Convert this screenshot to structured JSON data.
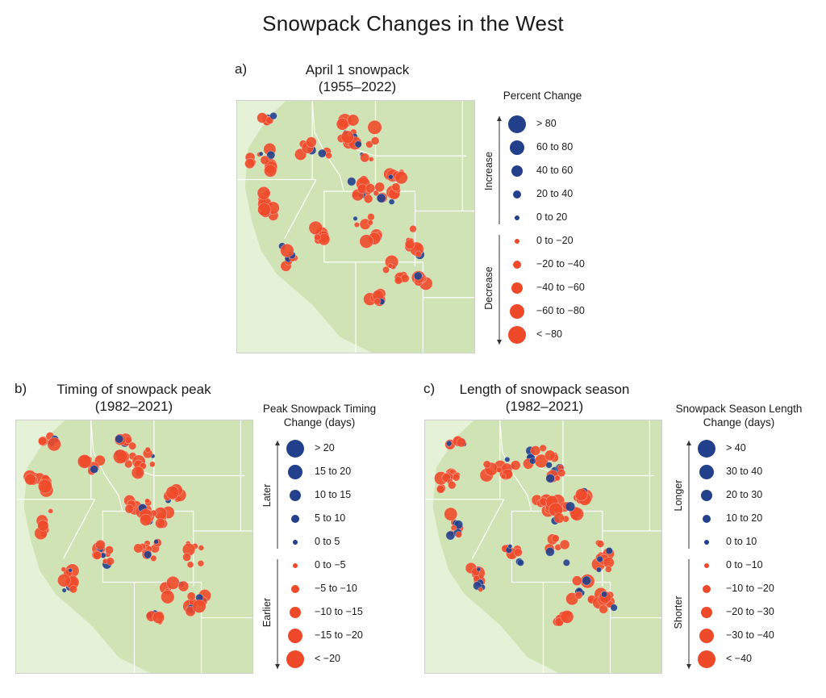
{
  "title": "Snowpack Changes in the West",
  "colors": {
    "increase": "#22408c",
    "decrease": "#ee4a2a",
    "land": "#cfe3b4",
    "outside": "#e6f2d8",
    "border": "#ffffff"
  },
  "panels": [
    {
      "letter": "a)",
      "title_line1": "April 1 snowpack",
      "title_line2": "(1955–2022)",
      "legend_title_line1": "Percent Change",
      "legend_title_line2": "",
      "upper_direction": "Increase",
      "lower_direction": "Decrease",
      "legend_classes": [
        {
          "label": "> 80",
          "color": "increase",
          "size": 5
        },
        {
          "label": "60 to 80",
          "color": "increase",
          "size": 4
        },
        {
          "label": "40 to 60",
          "color": "increase",
          "size": 3
        },
        {
          "label": "20 to 40",
          "color": "increase",
          "size": 2
        },
        {
          "label": "0 to 20",
          "color": "increase",
          "size": 1
        },
        {
          "label": "0 to −20",
          "color": "decrease",
          "size": 1
        },
        {
          "label": "−20 to −40",
          "color": "decrease",
          "size": 2
        },
        {
          "label": "−40 to −60",
          "color": "decrease",
          "size": 3
        },
        {
          "label": "−60 to −80",
          "color": "decrease",
          "size": 4
        },
        {
          "label": "< −80",
          "color": "decrease",
          "size": 5
        }
      ]
    },
    {
      "letter": "b)",
      "title_line1": "Timing of snowpack peak",
      "title_line2": "(1982–2021)",
      "legend_title_line1": "Peak Snowpack Timing",
      "legend_title_line2": "Change (days)",
      "upper_direction": "Later",
      "lower_direction": "Earlier",
      "legend_classes": [
        {
          "label": "> 20",
          "color": "increase",
          "size": 5
        },
        {
          "label": "15 to 20",
          "color": "increase",
          "size": 4
        },
        {
          "label": "10 to 15",
          "color": "increase",
          "size": 3
        },
        {
          "label": "5 to 10",
          "color": "increase",
          "size": 2
        },
        {
          "label": "0 to 5",
          "color": "increase",
          "size": 1
        },
        {
          "label": "0 to −5",
          "color": "decrease",
          "size": 1
        },
        {
          "label": "−5 to −10",
          "color": "decrease",
          "size": 2
        },
        {
          "label": "−10 to −15",
          "color": "decrease",
          "size": 3
        },
        {
          "label": "−15 to −20",
          "color": "decrease",
          "size": 4
        },
        {
          "label": "< −20",
          "color": "decrease",
          "size": 5
        }
      ]
    },
    {
      "letter": "c)",
      "title_line1": "Length of snowpack season",
      "title_line2": "(1982–2021)",
      "legend_title_line1": "Snowpack Season Length",
      "legend_title_line2": "Change (days)",
      "upper_direction": "Longer",
      "lower_direction": "Shorter",
      "legend_classes": [
        {
          "label": "> 40",
          "color": "increase",
          "size": 5
        },
        {
          "label": "30 to 40",
          "color": "increase",
          "size": 4
        },
        {
          "label": "20 to 30",
          "color": "increase",
          "size": 3
        },
        {
          "label": "10 to 20",
          "color": "increase",
          "size": 2
        },
        {
          "label": "0 to 10",
          "color": "increase",
          "size": 1
        },
        {
          "label": "0 to −10",
          "color": "decrease",
          "size": 1
        },
        {
          "label": "−10 to −20",
          "color": "decrease",
          "size": 2
        },
        {
          "label": "−20 to −30",
          "color": "decrease",
          "size": 3
        },
        {
          "label": "−30 to −40",
          "color": "decrease",
          "size": 4
        },
        {
          "label": "< −40",
          "color": "decrease",
          "size": 5
        }
      ]
    }
  ]
}
